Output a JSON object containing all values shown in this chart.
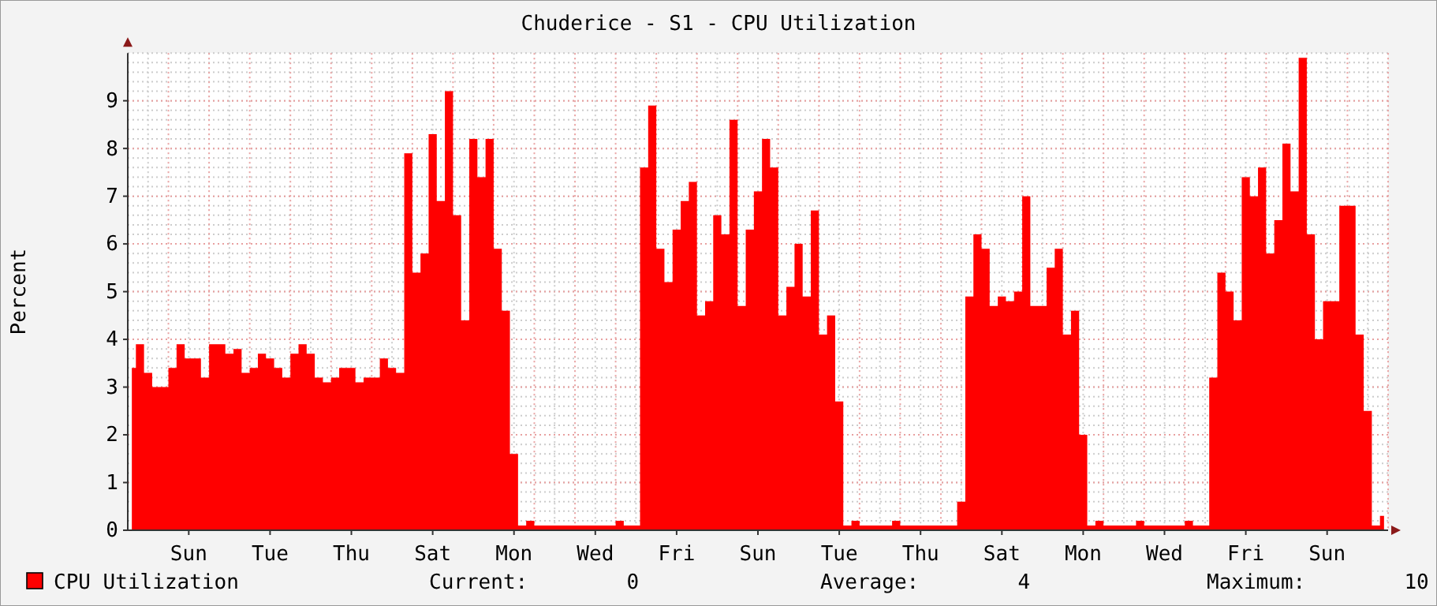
{
  "chart_data": {
    "type": "area",
    "title": "Chuderice - S1 - CPU Utilization",
    "ylabel": "Percent",
    "categories": [
      null,
      null,
      null,
      null,
      null,
      null,
      null,
      "Sun",
      null,
      null,
      null,
      null,
      null,
      null,
      null,
      null,
      null,
      "Tue",
      null,
      null,
      null,
      null,
      null,
      null,
      null,
      null,
      null,
      "Thu",
      null,
      null,
      null,
      null,
      null,
      null,
      null,
      null,
      null,
      "Sat",
      null,
      null,
      null,
      null,
      null,
      null,
      null,
      null,
      null,
      "Mon",
      null,
      null,
      null,
      null,
      null,
      null,
      null,
      null,
      null,
      "Wed",
      null,
      null,
      null,
      null,
      null,
      null,
      null,
      null,
      null,
      "Fri",
      null,
      null,
      null,
      null,
      null,
      null,
      null,
      null,
      null,
      "Sun",
      null,
      null,
      null,
      null,
      null,
      null,
      null,
      null,
      null,
      "Tue",
      null,
      null,
      null,
      null,
      null,
      null,
      null,
      null,
      null,
      "Thu",
      null,
      null,
      null,
      null,
      null,
      null,
      null,
      null,
      null,
      "Sat",
      null,
      null,
      null,
      null,
      null,
      null,
      null,
      null,
      null,
      "Mon",
      null,
      null,
      null,
      null,
      null,
      null,
      null,
      null,
      null,
      "Wed",
      null,
      null,
      null,
      null,
      null,
      null,
      null,
      null,
      null,
      "Fri",
      null,
      null,
      null,
      null,
      null,
      null,
      null,
      null,
      null,
      "Sun",
      null,
      null,
      null,
      null,
      null,
      null,
      null
    ],
    "series": [
      {
        "name": "CPU Utilization",
        "color": "#ff0000",
        "values": [
          3.4,
          3.9,
          3.3,
          3.0,
          3.0,
          3.4,
          3.9,
          3.6,
          3.6,
          3.2,
          3.9,
          3.9,
          3.7,
          3.8,
          3.3,
          3.4,
          3.7,
          3.6,
          3.4,
          3.2,
          3.7,
          3.9,
          3.7,
          3.2,
          3.1,
          3.2,
          3.4,
          3.4,
          3.1,
          3.2,
          3.2,
          3.6,
          3.4,
          3.3,
          7.9,
          5.4,
          5.8,
          8.3,
          6.9,
          9.2,
          6.6,
          4.4,
          8.2,
          7.4,
          8.2,
          5.9,
          4.6,
          1.6,
          0.1,
          0.2,
          0.1,
          0.1,
          0.1,
          0.1,
          0.1,
          0.1,
          0.1,
          0.1,
          0.1,
          0.1,
          0.2,
          0.1,
          0.1,
          7.6,
          8.9,
          5.9,
          5.2,
          6.3,
          6.9,
          7.3,
          4.5,
          4.8,
          6.6,
          6.2,
          8.6,
          4.7,
          6.3,
          7.1,
          8.2,
          7.6,
          4.5,
          5.1,
          6.0,
          4.9,
          6.7,
          4.1,
          4.5,
          2.7,
          0.1,
          0.2,
          0.1,
          0.1,
          0.1,
          0.1,
          0.2,
          0.1,
          0.1,
          0.1,
          0.1,
          0.1,
          0.1,
          0.1,
          0.6,
          4.9,
          6.2,
          5.9,
          4.7,
          4.9,
          4.8,
          5.0,
          7.0,
          4.7,
          4.7,
          5.5,
          5.9,
          4.1,
          4.6,
          2.0,
          0.1,
          0.2,
          0.1,
          0.1,
          0.1,
          0.1,
          0.2,
          0.1,
          0.1,
          0.1,
          0.1,
          0.1,
          0.2,
          0.1,
          0.1,
          3.2,
          5.4,
          5.0,
          4.4,
          7.4,
          7.0,
          7.6,
          5.8,
          6.5,
          8.1,
          7.1,
          9.9,
          6.2,
          4.0,
          4.8,
          4.8,
          6.8,
          6.8,
          4.1,
          2.5,
          0.1,
          0.3
        ]
      }
    ],
    "ylim": [
      0,
      10
    ],
    "yticks": [
      0,
      1,
      2,
      3,
      4,
      5,
      6,
      7,
      8,
      9
    ],
    "grid": true,
    "legend": "bottom left",
    "annotations": [
      "Current:        0",
      "Average:        4",
      "Maximum:        10"
    ]
  }
}
